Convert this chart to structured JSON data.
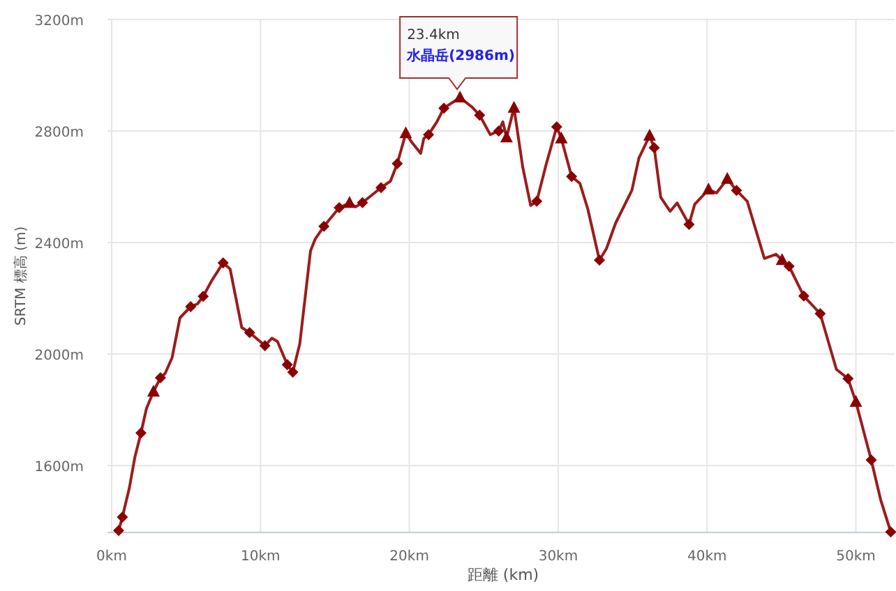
{
  "chart_data": {
    "type": "line",
    "xlabel": "距離 (km)",
    "ylabel": "SRTM 標高 (m)",
    "xlim": [
      0,
      52.6
    ],
    "ylim": [
      1360,
      3200
    ],
    "xticks": [
      {
        "value": 0,
        "label": "0km"
      },
      {
        "value": 10,
        "label": "10km"
      },
      {
        "value": 20,
        "label": "20km"
      },
      {
        "value": 30,
        "label": "30km"
      },
      {
        "value": 40,
        "label": "40km"
      },
      {
        "value": 50,
        "label": "50km"
      }
    ],
    "yticks": [
      {
        "value": 1600,
        "label": "1600m"
      },
      {
        "value": 2000,
        "label": "2000m"
      },
      {
        "value": 2400,
        "label": "2400m"
      },
      {
        "value": 2800,
        "label": "2800m"
      },
      {
        "value": 3200,
        "label": "3200m"
      }
    ],
    "grid": true,
    "annotations": [
      {
        "text": "23.4km\n水晶岳(2986m)",
        "x": 23.4,
        "y": 2920
      }
    ],
    "series": [
      {
        "color": "#9b1c1c",
        "marker": "none",
        "x": [
          0.47,
          0.72,
          1.19,
          1.56,
          1.97,
          2.34,
          2.81,
          3.28,
          3.59,
          4.06,
          4.59,
          5.31,
          5.77,
          6.15,
          6.71,
          7.49,
          7.96,
          8.74,
          9.27,
          10.3,
          10.77,
          11.14,
          11.8,
          12.17,
          12.64,
          13.36,
          13.67,
          14.26,
          15.29,
          15.98,
          16.39,
          16.85,
          18.1,
          18.73,
          19.19,
          19.76,
          20.13,
          20.76,
          20.97,
          21.29,
          21.85,
          22.32,
          23.4,
          24.19,
          24.72,
          25.44,
          26.0,
          26.28,
          26.53,
          27.03,
          27.62,
          28.15,
          28.56,
          29.18,
          29.9,
          30.21,
          30.9,
          31.46,
          31.99,
          32.77,
          33.24,
          33.86,
          34.95,
          35.42,
          36.14,
          36.45,
          36.89,
          37.52,
          37.99,
          38.79,
          39.17,
          40.1,
          40.64,
          41.36,
          41.98,
          42.7,
          43.85,
          44.63,
          45.04,
          45.51,
          46.5,
          47.6,
          48.69,
          49.47,
          50.0,
          51.03,
          51.66,
          52.34
        ],
        "values": [
          1367,
          1415,
          1520,
          1630,
          1717,
          1805,
          1865,
          1915,
          1930,
          1987,
          2130,
          2170,
          2180,
          2207,
          2262,
          2327,
          2305,
          2095,
          2077,
          2030,
          2057,
          2045,
          1962,
          1935,
          2037,
          2370,
          2412,
          2458,
          2525,
          2542,
          2528,
          2543,
          2597,
          2620,
          2683,
          2792,
          2762,
          2720,
          2773,
          2787,
          2833,
          2882,
          2920,
          2887,
          2857,
          2787,
          2800,
          2833,
          2777,
          2883,
          2670,
          2533,
          2548,
          2678,
          2815,
          2773,
          2637,
          2612,
          2520,
          2337,
          2378,
          2470,
          2587,
          2703,
          2783,
          2740,
          2562,
          2512,
          2542,
          2465,
          2537,
          2590,
          2578,
          2628,
          2587,
          2548,
          2343,
          2358,
          2337,
          2315,
          2208,
          2145,
          1945,
          1912,
          1828,
          1620,
          1478,
          1362
        ]
      },
      {
        "type": "scatter",
        "color": "#8b0000",
        "marker": "diamond",
        "x": [
          0.47,
          0.72,
          1.97,
          3.28,
          5.31,
          6.15,
          7.49,
          9.27,
          10.3,
          11.8,
          12.17,
          14.26,
          15.29,
          16.85,
          18.1,
          19.19,
          21.29,
          22.32,
          24.72,
          26.0,
          28.56,
          29.9,
          30.9,
          32.77,
          36.45,
          38.79,
          41.98,
          45.51,
          46.5,
          47.6,
          49.47,
          51.03,
          52.34
        ],
        "values": [
          1367,
          1415,
          1717,
          1915,
          2170,
          2207,
          2327,
          2077,
          2030,
          1962,
          1935,
          2458,
          2525,
          2543,
          2597,
          2683,
          2787,
          2882,
          2857,
          2800,
          2548,
          2815,
          2637,
          2337,
          2740,
          2465,
          2587,
          2315,
          2208,
          2145,
          1912,
          1620,
          1362
        ]
      },
      {
        "type": "scatter",
        "color": "#8b0000",
        "marker": "triangle",
        "x": [
          2.81,
          15.98,
          19.76,
          23.4,
          26.53,
          27.03,
          30.21,
          36.14,
          40.1,
          41.36,
          45.04,
          50.0
        ],
        "values": [
          1865,
          2542,
          2792,
          2920,
          2777,
          2883,
          2773,
          2783,
          2590,
          2628,
          2337,
          1828
        ]
      }
    ]
  }
}
